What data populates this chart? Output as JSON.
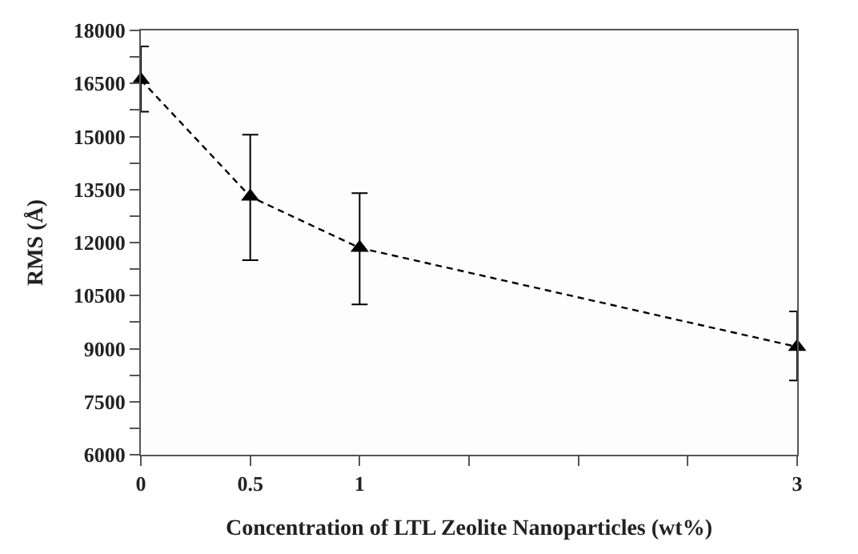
{
  "chart_data": {
    "type": "line",
    "xlabel": "Concentration of LTL Zeolite Nanoparticles (wt%)",
    "ylabel": "RMS (Å)",
    "x": [
      0,
      0.5,
      1,
      3
    ],
    "series": [
      {
        "color": "#000000",
        "values": [
          16600,
          13300,
          11850,
          9050
        ],
        "errors": [
          [
            15700,
            17550
          ],
          [
            11500,
            15050
          ],
          [
            10250,
            13400
          ],
          [
            8100,
            10050
          ]
        ]
      }
    ],
    "xlim": [
      0,
      3
    ],
    "xticks": [
      0,
      0.5,
      1,
      {
        "value": 1.5,
        "label": null
      },
      {
        "value": 2,
        "label": null
      },
      {
        "value": 2.5,
        "label": null
      },
      3
    ],
    "ylim": [
      6000,
      18000
    ],
    "yticks": [
      6000,
      {
        "value": 6750,
        "label": null
      },
      7500,
      {
        "value": 8250,
        "label": null
      },
      9000,
      {
        "value": 9750,
        "label": null
      },
      10500,
      {
        "value": 11250,
        "label": null
      },
      12000,
      {
        "value": 12750,
        "label": null
      },
      13500,
      {
        "value": 14250,
        "label": null
      },
      15000,
      {
        "value": 15750,
        "label": null
      },
      16500,
      {
        "value": 17250,
        "label": null
      },
      18000
    ],
    "marker": "triangle",
    "line_style": "dashed",
    "legend": false
  }
}
